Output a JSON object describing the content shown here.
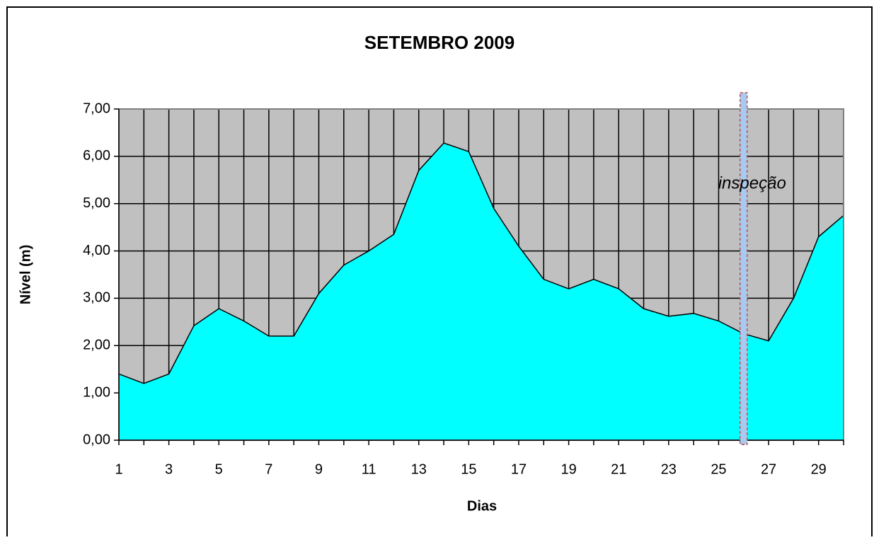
{
  "chart_data": {
    "type": "area",
    "title": "SETEMBRO 2009",
    "xlabel": "Dias",
    "ylabel": "Nível (m)",
    "x": [
      1,
      2,
      3,
      4,
      5,
      6,
      7,
      8,
      9,
      10,
      11,
      12,
      13,
      14,
      15,
      16,
      17,
      18,
      19,
      20,
      21,
      22,
      23,
      24,
      25,
      26,
      27,
      28,
      29,
      30
    ],
    "values": [
      1.4,
      1.2,
      1.4,
      2.42,
      2.78,
      2.52,
      2.2,
      2.2,
      3.1,
      3.7,
      4.0,
      4.35,
      5.7,
      6.28,
      6.1,
      4.9,
      4.1,
      3.4,
      3.2,
      3.4,
      3.2,
      2.78,
      2.62,
      2.68,
      2.52,
      2.25,
      2.1,
      3.0,
      4.3,
      4.75
    ],
    "color": "#00ffff",
    "xlim": [
      1,
      30
    ],
    "xticks": [
      1,
      3,
      5,
      7,
      9,
      11,
      13,
      15,
      17,
      19,
      21,
      23,
      25,
      27,
      29
    ],
    "ylim": [
      0,
      7
    ],
    "yticks": [
      {
        "value": 0,
        "label": "0,00"
      },
      {
        "value": 1,
        "label": "1,00"
      },
      {
        "value": 2,
        "label": "2,00"
      },
      {
        "value": 3,
        "label": "3,00"
      },
      {
        "value": 4,
        "label": "4,00"
      },
      {
        "value": 5,
        "label": "5,00"
      },
      {
        "value": 6,
        "label": "6,00"
      },
      {
        "value": 7,
        "label": "7,00"
      }
    ],
    "grid": true,
    "annotations": [
      {
        "text": "inspeção",
        "x": 26
      }
    ]
  }
}
